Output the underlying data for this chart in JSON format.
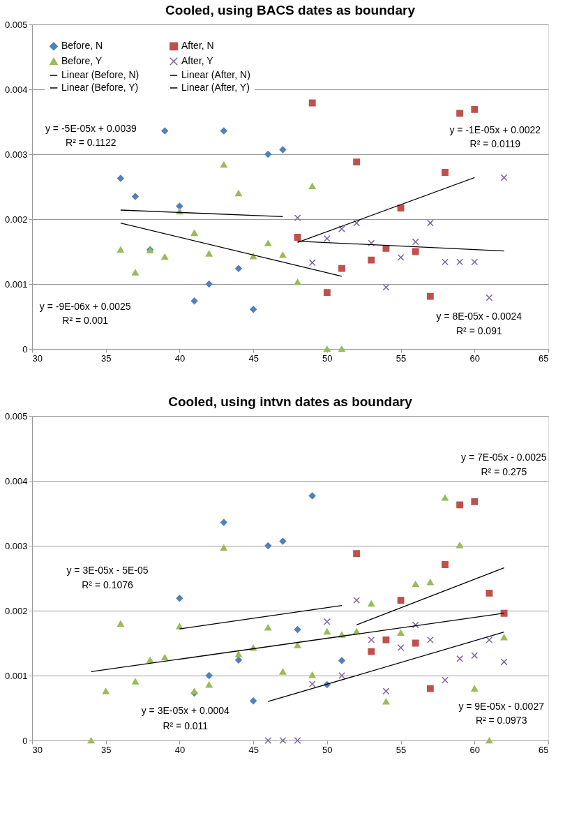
{
  "chart_data": [
    {
      "type": "scatter",
      "title": "Cooled, using BACS dates as boundary",
      "xlim": [
        30,
        65
      ],
      "xticks": [
        30,
        35,
        40,
        45,
        50,
        55,
        60,
        65
      ],
      "ylim": [
        0,
        0.005
      ],
      "yticks": [
        0,
        0.001,
        0.002,
        0.003,
        0.004,
        0.005
      ],
      "grid": "y",
      "legend": "top left",
      "series": [
        {
          "name": "Before, N",
          "marker": "diamond",
          "color": "#4f81bd",
          "x": [
            36,
            37,
            38,
            39,
            40,
            41,
            42,
            43,
            44,
            45,
            46,
            47
          ],
          "values": [
            0.00263,
            0.00235,
            0.00153,
            0.00336,
            0.0022,
            0.00074,
            0.001,
            0.00336,
            0.00124,
            0.00061,
            0.003,
            0.00307
          ]
        },
        {
          "name": "Before, Y",
          "marker": "triangle",
          "color": "#9bbb59",
          "x": [
            36,
            37,
            38,
            39,
            40,
            41,
            42,
            43,
            44,
            45,
            46,
            47,
            48,
            49,
            50,
            51
          ],
          "values": [
            0.00153,
            0.00118,
            0.00152,
            0.00142,
            0.00212,
            0.00179,
            0.00147,
            0.00284,
            0.0024,
            0.00143,
            0.00163,
            0.00145,
            0.00103,
            0.00251,
            0,
            0
          ]
        },
        {
          "name": "Linear (Before, N)",
          "type": "line",
          "line_style": "solid",
          "color": "#000000",
          "x": [
            36,
            47
          ],
          "values": [
            0.00214,
            0.00204
          ]
        },
        {
          "name": "Linear (Before, Y)",
          "type": "line",
          "line_style": "solid",
          "color": "#000000",
          "x": [
            36,
            51
          ],
          "values": [
            0.00194,
            0.00112
          ]
        },
        {
          "name": "After, N",
          "marker": "square",
          "color": "#c0504d",
          "x": [
            48,
            49,
            50,
            51,
            52,
            53,
            54,
            55,
            56,
            57,
            58,
            59,
            60
          ],
          "values": [
            0.00172,
            0.00379,
            0.00087,
            0.00124,
            0.00288,
            0.00137,
            0.00155,
            0.00217,
            0.0015,
            0.00081,
            0.00272,
            0.00363,
            0.00369
          ]
        },
        {
          "name": "After, Y",
          "marker": "cross",
          "color": "#8064a2",
          "x": [
            48,
            49,
            50,
            51,
            52,
            53,
            54,
            55,
            56,
            57,
            58,
            59,
            60,
            61,
            62
          ],
          "values": [
            0.00202,
            0.00133,
            0.0017,
            0.00185,
            0.00194,
            0.00163,
            0.00095,
            0.00141,
            0.00165,
            0.00194,
            0.00134,
            0.00134,
            0.00134,
            0.00079,
            0.00264
          ]
        },
        {
          "name": "Linear (After, N)",
          "type": "line",
          "line_style": "solid",
          "color": "#000000",
          "x": [
            48,
            62
          ],
          "values": [
            0.00166,
            0.00151
          ]
        },
        {
          "name": "Linear (After, Y)",
          "type": "line",
          "line_style": "solid",
          "color": "#000000",
          "x": [
            48,
            60
          ],
          "values": [
            0.00164,
            0.00264
          ]
        }
      ],
      "annotations": [
        "y = -5E-05x + 0.0039",
        "R² = 0.1122",
        "y = -9E-06x + 0.0025",
        "R² = 0.001",
        "y = -1E-05x + 0.0022",
        "R² = 0.0119",
        "y = 8E-05x - 0.0024",
        "R² = 0.091"
      ]
    },
    {
      "type": "scatter",
      "title": "Cooled, using intvn dates as boundary",
      "xlim": [
        30,
        65
      ],
      "xticks": [
        30,
        35,
        40,
        45,
        50,
        55,
        60,
        65
      ],
      "ylim": [
        0,
        0.005
      ],
      "yticks": [
        0,
        0.001,
        0.002,
        0.003,
        0.004,
        0.005
      ],
      "grid": "y",
      "legend": "top left",
      "series": [
        {
          "name": "Before, N",
          "marker": "diamond",
          "color": "#4f81bd",
          "x": [
            40,
            41,
            42,
            43,
            44,
            45,
            46,
            47,
            48,
            49,
            50,
            51
          ],
          "values": [
            0.00219,
            0.00073,
            0.001,
            0.00336,
            0.00124,
            0.00061,
            0.003,
            0.00307,
            0.00171,
            0.00377,
            0.00086,
            0.00123
          ]
        },
        {
          "name": "Before, Y",
          "marker": "triangle",
          "color": "#9bbb59",
          "x": [
            34,
            35,
            36,
            37,
            38,
            39,
            40,
            41,
            42,
            43,
            44,
            45,
            46,
            47,
            48,
            49,
            50,
            51,
            52,
            53,
            54,
            55,
            56,
            57,
            58,
            59,
            60,
            61,
            62
          ],
          "values": [
            0,
            0.00076,
            0.0018,
            0.00091,
            0.00124,
            0.00128,
            0.00176,
            0.00076,
            0.00086,
            0.00297,
            0.00133,
            0.00143,
            0.00174,
            0.00106,
            0.00147,
            0.00101,
            0.00168,
            0.00163,
            0.00168,
            0.00211,
            0.0006,
            0.00166,
            0.00241,
            0.00244,
            0.00374,
            0.00301,
            0.0008,
            0,
            0.00159
          ]
        },
        {
          "name": "Linear (Before, N)",
          "type": "line",
          "line_style": "solid",
          "color": "#000000",
          "x": [
            40,
            51
          ],
          "values": [
            0.00172,
            0.00208
          ]
        },
        {
          "name": "Linear (Before, Y)",
          "type": "line",
          "line_style": "solid",
          "color": "#000000",
          "x": [
            34,
            62
          ],
          "values": [
            0.00106,
            0.00196
          ]
        },
        {
          "name": "After, N",
          "marker": "square",
          "color": "#c0504d",
          "x": [
            52,
            53,
            54,
            55,
            56,
            57,
            58,
            59,
            60,
            61,
            62
          ],
          "values": [
            0.00288,
            0.00137,
            0.00155,
            0.00216,
            0.0015,
            0.0008,
            0.00271,
            0.00363,
            0.00368,
            0.00227,
            0.00196
          ]
        },
        {
          "name": "After, Y",
          "marker": "cross",
          "color": "#8064a2",
          "x": [
            46,
            47,
            48,
            49,
            50,
            51,
            52,
            53,
            54,
            55,
            56,
            57,
            58,
            59,
            60,
            61,
            62
          ],
          "values": [
            0,
            0,
            0,
            0.00087,
            0.00183,
            0.001,
            0.00216,
            0.00155,
            0.00076,
            0.00143,
            0.00178,
            0.00155,
            0.00093,
            0.00126,
            0.00131,
            0.00155,
            0.00121
          ]
        },
        {
          "name": "Linear (After, N)",
          "type": "line",
          "line_style": "solid",
          "color": "#000000",
          "x": [
            52,
            62
          ],
          "values": [
            0.00178,
            0.00266
          ]
        },
        {
          "name": "Linear (After, Y)",
          "type": "line",
          "line_style": "solid",
          "color": "#000000",
          "x": [
            46,
            62
          ],
          "values": [
            0.0006,
            0.00167
          ]
        }
      ],
      "annotations": [
        "y = 3E-05x - 5E-05",
        "R² = 0.1076",
        "y = 3E-05x + 0.0004",
        "R² = 0.011",
        "y = 7E-05x - 0.0025",
        "R² = 0.275",
        "y = 9E-05x - 0.0027",
        "R² = 0.0973"
      ]
    }
  ]
}
